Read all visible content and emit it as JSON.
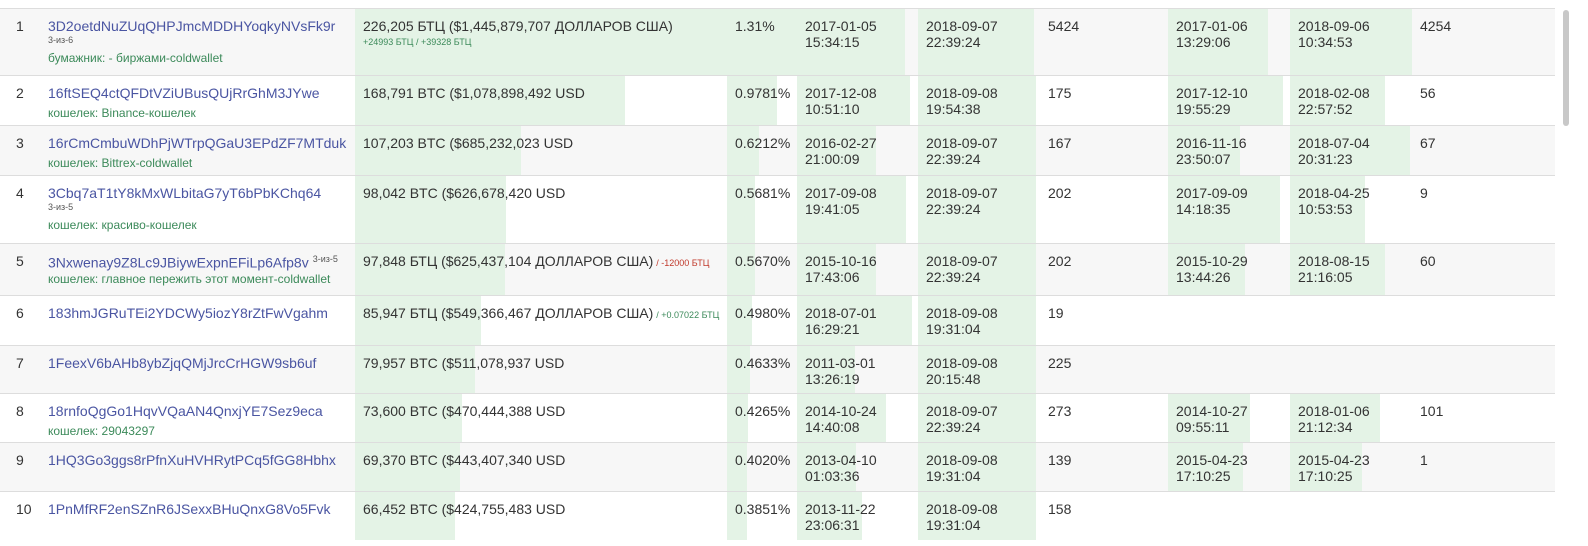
{
  "table": {
    "rows": [
      {
        "rank": "1",
        "address": "3D2oetdNuZUqQHPJmcMDDHYoqkyNVsFk9r",
        "multisig": "3-из-6",
        "wallet": "бумажник: - биржами-coldwallet",
        "balance": "226,205 БТЦ ($1,445,879,707 ДОЛЛАРОВ США)",
        "change_line": "+24993 БТЦ / +39328 БТЦ",
        "percent": "1.31%",
        "first_in": [
          "2017-01-05",
          "15:34:15"
        ],
        "last_in": [
          "2018-09-07",
          "22:39:24"
        ],
        "ins": 5424,
        "first_out": [
          "2017-01-06",
          "13:29:06"
        ],
        "last_out": [
          "2018-09-06",
          "10:34:53"
        ],
        "outs": 4254
      },
      {
        "rank": "2",
        "address": "16ftSEQ4ctQFDtVZiUBusQUjRrGhM3JYwe",
        "wallet": "кошелек: Binance-кошелек",
        "balance": "168,791 BTC ($1,078,898,492 USD",
        "percent": "0.9781%",
        "first_in": [
          "2017-12-08",
          "10:51:10"
        ],
        "last_in": [
          "2018-09-08",
          "19:54:38"
        ],
        "ins": 175,
        "first_out": [
          "2017-12-10",
          "19:55:29"
        ],
        "last_out": [
          "2018-02-08",
          "22:57:52"
        ],
        "outs": 56
      },
      {
        "rank": "3",
        "address": "16rCmCmbuWDhPjWTrpQGaU3EPdZF7MTduk",
        "wallet": "кошелек: Bittrex-coldwallet",
        "balance": "107,203 BTC ($685,232,023 USD",
        "percent": "0.6212%",
        "first_in": [
          "2016-02-27",
          "21:00:09"
        ],
        "last_in": [
          "2018-09-07",
          "22:39:24"
        ],
        "ins": 167,
        "first_out": [
          "2016-11-16",
          "23:50:07"
        ],
        "last_out": [
          "2018-07-04",
          "20:31:23"
        ],
        "outs": 67
      },
      {
        "rank": "4",
        "address": "3Cbq7aT1tY8kMxWLbitaG7yT6bPbKChq64",
        "multisig": "3-из-5",
        "wallet": "кошелек: красиво-кошелек",
        "balance": "98,042 BTC ($626,678,420 USD",
        "percent": "0.5681%",
        "first_in": [
          "2017-09-08",
          "19:41:05"
        ],
        "last_in": [
          "2018-09-07",
          "22:39:24"
        ],
        "ins": 202,
        "first_out": [
          "2017-09-09",
          "14:18:35"
        ],
        "last_out": [
          "2018-04-25",
          "10:53:53"
        ],
        "outs": 9
      },
      {
        "rank": "5",
        "address": "3Nxwenay9Z8Lc9JBiywExpnEFiLp6Afp8v",
        "multisig_inline": "3-из-5",
        "wallet": "кошелек: главное пережить этот момент-coldwallet",
        "balance": "97,848 БТЦ ($625,437,104 ДОЛЛАРОВ США)",
        "change": "/ -12000 БТЦ",
        "change_color": "#c0392b",
        "percent": "0.5670%",
        "first_in": [
          "2015-10-16",
          "17:43:06"
        ],
        "last_in": [
          "2018-09-07",
          "22:39:24"
        ],
        "ins": 202,
        "first_out": [
          "2015-10-29",
          "13:44:26"
        ],
        "last_out": [
          "2018-08-15",
          "21:16:05"
        ],
        "outs": 60
      },
      {
        "rank": "6",
        "address": "183hmJGRuTEi2YDCWy5iozY8rZtFwVgahm",
        "balance": "85,947 БТЦ ($549,366,467 ДОЛЛАРОВ США)",
        "change": "/ +0.07022 БТЦ",
        "change_color": "#3c8a5a",
        "percent": "0.4980%",
        "first_in": [
          "2018-07-01",
          "16:29:21"
        ],
        "last_in": [
          "2018-09-08",
          "19:31:04"
        ],
        "ins": 19
      },
      {
        "rank": "7",
        "address": "1FeexV6bAHb8ybZjqQMjJrcCrHGW9sb6uf",
        "balance": "79,957 BTC ($511,078,937 USD",
        "percent": "0.4633%",
        "first_in": [
          "2011-03-01",
          "13:26:19"
        ],
        "last_in": [
          "2018-09-08",
          "20:15:48"
        ],
        "ins": 225
      },
      {
        "rank": "8",
        "address": "18rnfoQgGo1HqvVQaAN4QnxjYE7Sez9eca",
        "wallet": "кошелек: 29043297",
        "balance": "73,600 BTC ($470,444,388 USD",
        "percent": "0.4265%",
        "first_in": [
          "2014-10-24",
          "14:40:08"
        ],
        "last_in": [
          "2018-09-07",
          "22:39:24"
        ],
        "ins": 273,
        "first_out": [
          "2014-10-27",
          "09:55:11"
        ],
        "last_out": [
          "2018-01-06",
          "21:12:34"
        ],
        "outs": 101
      },
      {
        "rank": "9",
        "address": "1HQ3Go3ggs8rPfnXuHVHRytPCq5fGG8Hbhx",
        "balance": "69,370 BTC ($443,407,340 USD",
        "percent": "0.4020%",
        "first_in": [
          "2013-04-10",
          "01:03:36"
        ],
        "last_in": [
          "2018-09-08",
          "19:31:04"
        ],
        "ins": 139,
        "first_out": [
          "2015-04-23",
          "17:10:25"
        ],
        "last_out": [
          "2015-04-23",
          "17:10:25"
        ],
        "outs": 1
      },
      {
        "rank": "10",
        "address": "1PnMfRF2enSZnR6JSexxBHuQnxG8Vo5Fvk",
        "balance": "66,452 BTC ($424,755,483 USD",
        "percent": "0.3851%",
        "first_in": [
          "2013-11-22",
          "23:06:31"
        ],
        "last_in": [
          "2018-09-08",
          "19:31:04"
        ],
        "ins": 158
      }
    ]
  }
}
